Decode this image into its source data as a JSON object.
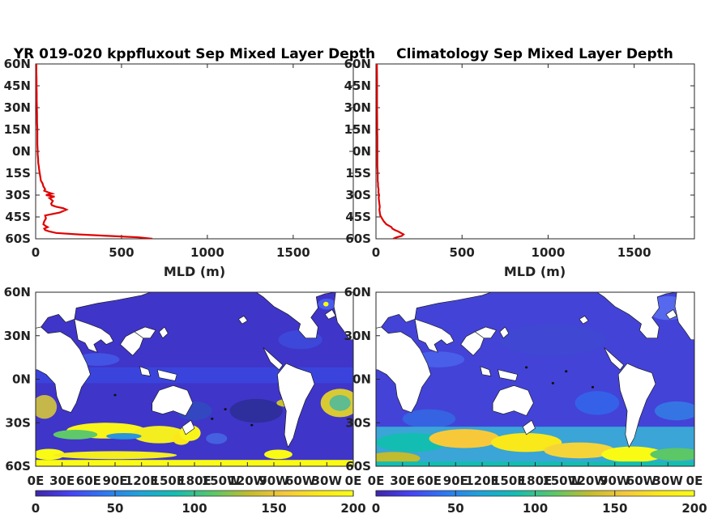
{
  "chart_data": [
    {
      "type": "line",
      "title": "YR 019-020 kppfluxout Sep Mixed Layer Depth",
      "xlabel": "MLD (m)",
      "ylabel": "",
      "xlim": [
        0,
        1850
      ],
      "ylim": [
        -60,
        60
      ],
      "x_ticks": [
        "0",
        "500",
        "1000",
        "1500"
      ],
      "x_tick_values": [
        0,
        500,
        1000,
        1500
      ],
      "y_ticks": [
        "60S",
        "45S",
        "30S",
        "15S",
        "0N",
        "15N",
        "30N",
        "45N",
        "60N"
      ],
      "y_tick_values": [
        -60,
        -45,
        -30,
        -15,
        0,
        15,
        30,
        45,
        60
      ],
      "color": "#e00000",
      "series": [
        {
          "lat": [
            -60,
            -59,
            -58,
            -57,
            -56,
            -55,
            -54,
            -53,
            -52,
            -51,
            -50,
            -48,
            -46,
            -44,
            -42,
            -40,
            -39,
            -38,
            -37,
            -36,
            -34,
            -32,
            -31,
            -30,
            -29,
            -28,
            -27,
            -26,
            -24,
            -22,
            -20,
            -18,
            -16,
            -14,
            -12,
            -10,
            -8,
            -5,
            -2,
            0,
            5,
            10,
            15,
            20,
            25,
            30,
            35,
            40,
            45,
            50,
            55,
            60
          ],
          "mld": [
            680,
            600,
            420,
            250,
            120,
            80,
            55,
            50,
            70,
            55,
            45,
            50,
            60,
            55,
            140,
            180,
            160,
            120,
            95,
            90,
            100,
            80,
            110,
            60,
            95,
            70,
            50,
            55,
            45,
            40,
            30,
            28,
            25,
            22,
            20,
            18,
            15,
            14,
            12,
            12,
            10,
            10,
            10,
            8,
            8,
            7,
            6,
            6,
            5,
            5,
            4,
            4
          ]
        }
      ]
    },
    {
      "type": "line",
      "title": "Climatology Sep Mixed Layer Depth",
      "xlabel": "MLD (m)",
      "ylabel": "",
      "xlim": [
        0,
        1850
      ],
      "ylim": [
        -60,
        60
      ],
      "x_ticks": [
        "0",
        "500",
        "1000",
        "1500"
      ],
      "x_tick_values": [
        0,
        500,
        1000,
        1500
      ],
      "y_ticks": [
        "60S",
        "45S",
        "30S",
        "15S",
        "0N",
        "15N",
        "30N",
        "45N",
        "60N"
      ],
      "y_tick_values": [
        -60,
        -45,
        -30,
        -15,
        0,
        15,
        30,
        45,
        60
      ],
      "color": "#e00000",
      "series": [
        {
          "lat": [
            -60,
            -59,
            -58,
            -57,
            -56,
            -55,
            -54,
            -53,
            -52,
            -51,
            -50,
            -48,
            -46,
            -44,
            -42,
            -40,
            -38,
            -36,
            -34,
            -32,
            -30,
            -28,
            -26,
            -24,
            -22,
            -20,
            -15,
            -10,
            -5,
            0,
            5,
            10,
            15,
            20,
            30,
            40,
            50,
            60
          ],
          "mld": [
            100,
            120,
            150,
            160,
            145,
            130,
            110,
            95,
            90,
            75,
            60,
            45,
            35,
            25,
            22,
            20,
            22,
            20,
            18,
            16,
            18,
            14,
            15,
            12,
            12,
            10,
            10,
            8,
            8,
            8,
            8,
            8,
            7,
            7,
            6,
            6,
            6,
            5
          ]
        }
      ]
    },
    {
      "type": "heatmap",
      "title": "",
      "x_ticks": [
        "0E",
        "30E",
        "60E",
        "90E",
        "120E",
        "150E",
        "180E",
        "150W",
        "120W",
        "90W",
        "60W",
        "30W",
        "0E"
      ],
      "y_ticks": [
        "60S",
        "30S",
        "0N",
        "30N",
        "60N"
      ],
      "y_tick_values": [
        -60,
        -30,
        0,
        30,
        60
      ],
      "colorbar_ticks": [
        "0",
        "50",
        "100",
        "150",
        "200"
      ],
      "colorbar_values": [
        0,
        50,
        100,
        150,
        200
      ],
      "clim": [
        0,
        200
      ],
      "colormap": [
        "#3e26a8",
        "#4743f5",
        "#2c7af0",
        "#20a3d8",
        "#14bdb1",
        "#5bc767",
        "#c1bb2f",
        "#f5c83a",
        "#fae81a",
        "#f9fb15"
      ]
    },
    {
      "type": "heatmap",
      "title": "",
      "x_ticks": [
        "0E",
        "30E",
        "60E",
        "90E",
        "120E",
        "150E",
        "180E",
        "150W",
        "120W",
        "90W",
        "60W",
        "30W",
        "0E"
      ],
      "y_ticks": [
        "60S",
        "30S",
        "0N",
        "30N",
        "60N"
      ],
      "y_tick_values": [
        -60,
        -30,
        0,
        30,
        60
      ],
      "colorbar_ticks": [
        "0",
        "50",
        "100",
        "150",
        "200"
      ],
      "colorbar_values": [
        0,
        50,
        100,
        150,
        200
      ],
      "clim": [
        0,
        200
      ],
      "colormap": [
        "#3e26a8",
        "#4743f5",
        "#2c7af0",
        "#20a3d8",
        "#14bdb1",
        "#5bc767",
        "#c1bb2f",
        "#f5c83a",
        "#fae81a",
        "#f9fb15"
      ]
    }
  ]
}
